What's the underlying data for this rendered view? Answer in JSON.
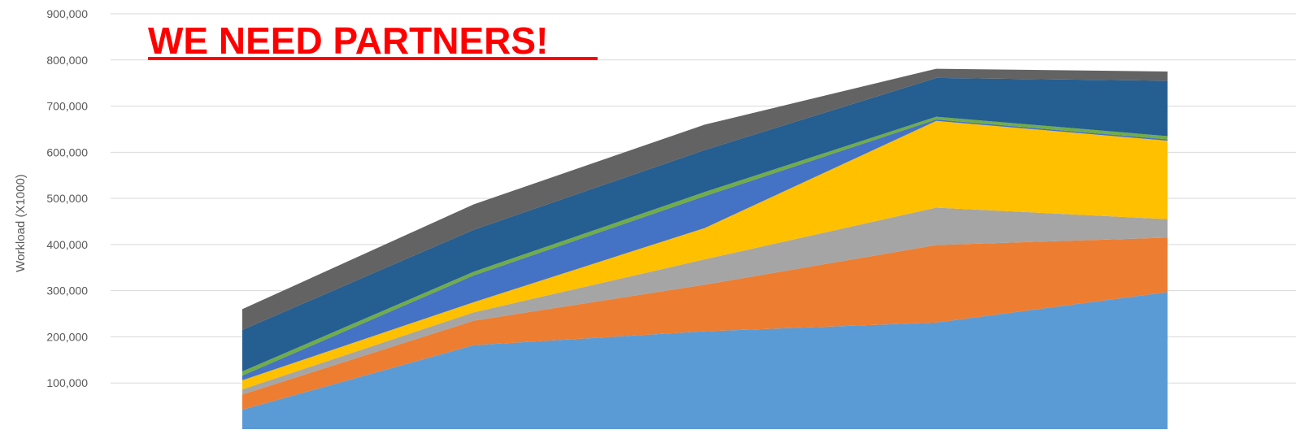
{
  "banner": "WE NEED PARTNERS!",
  "chart_data": {
    "type": "area",
    "stacked": true,
    "title": "",
    "xlabel": "",
    "ylabel": "Workload (X1000)",
    "ylim": [
      0,
      900000
    ],
    "yticks": [
      100000,
      200000,
      300000,
      400000,
      500000,
      600000,
      700000,
      800000,
      900000
    ],
    "ytick_labels": [
      "100,000",
      "200,000",
      "300,000",
      "400,000",
      "500,000",
      "600,000",
      "700,000",
      "800,000",
      "900,000"
    ],
    "grid": true,
    "legend": "none",
    "x": [
      1,
      2,
      3,
      4,
      5
    ],
    "series": [
      {
        "color": "#5b9bd5",
        "values": [
          42000,
          182000,
          212000,
          231000,
          297000
        ]
      },
      {
        "color": "#ed7d31",
        "values": [
          33000,
          53000,
          101000,
          168000,
          118000
        ]
      },
      {
        "color": "#a5a5a5",
        "values": [
          11000,
          18000,
          55000,
          81000,
          40000
        ]
      },
      {
        "color": "#ffc000",
        "values": [
          20000,
          22000,
          68000,
          188000,
          170000
        ]
      },
      {
        "color": "#4472c4",
        "values": [
          10000,
          58000,
          69000,
          3000,
          3000
        ]
      },
      {
        "color": "#70ad47",
        "values": [
          9000,
          8000,
          9000,
          6000,
          7000
        ]
      },
      {
        "color": "#255e91",
        "values": [
          90000,
          91000,
          91000,
          84000,
          120000
        ]
      },
      {
        "color": "#636363",
        "values": [
          45000,
          55000,
          55000,
          20000,
          20000
        ]
      }
    ]
  }
}
